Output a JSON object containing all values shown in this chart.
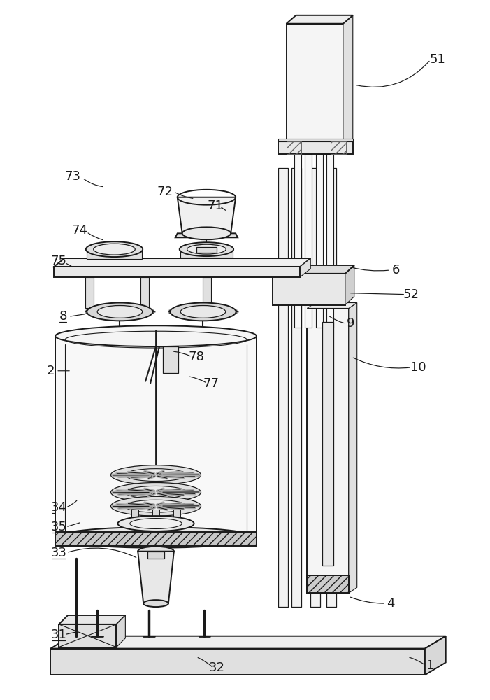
{
  "bg_color": "#ffffff",
  "line_color": "#1a1a1a",
  "lw_main": 1.4,
  "lw_thin": 0.8,
  "label_fontsize": 13,
  "fig_width": 7.01,
  "fig_height": 10.0
}
